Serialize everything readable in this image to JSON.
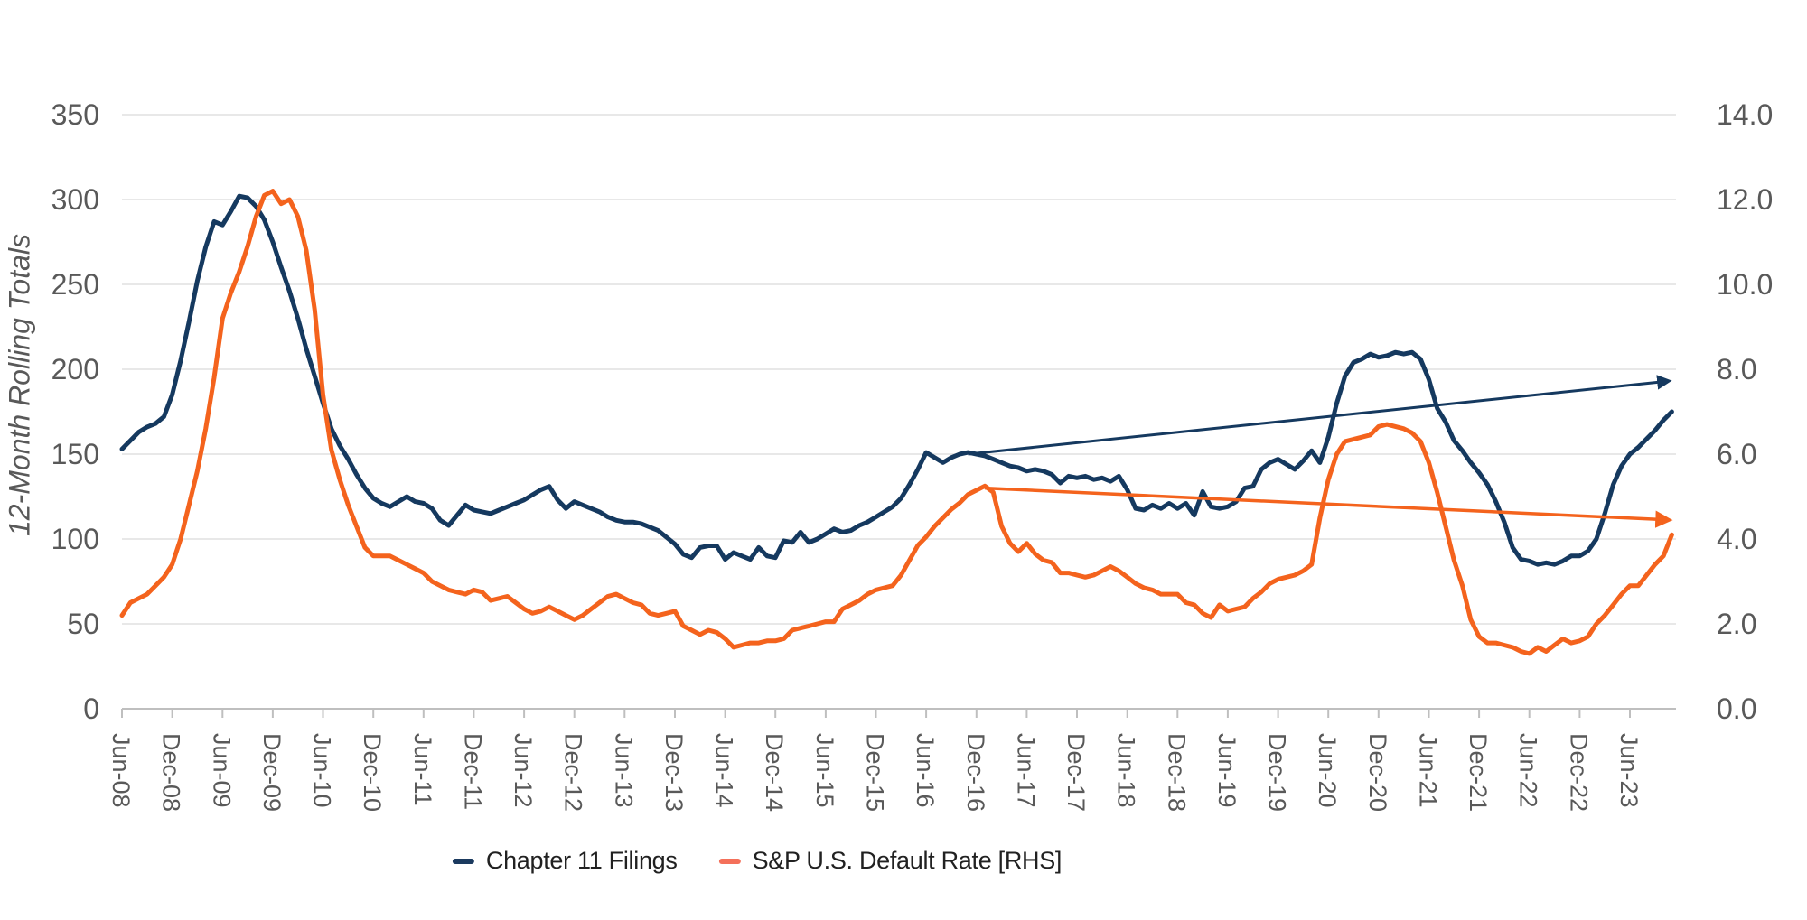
{
  "chart_data": {
    "type": "line",
    "title": "",
    "ylabel": "12-Month Rolling Totals",
    "frequency": "monthly",
    "x_range": "Jun-08 to Nov-23",
    "left_axis": {
      "min": 0,
      "max": 350,
      "step": 50,
      "ticks": [
        "0",
        "50",
        "100",
        "150",
        "200",
        "250",
        "300",
        "350"
      ]
    },
    "right_axis": {
      "min": 0,
      "max": 14,
      "step": 2,
      "ticks": [
        "0.0",
        "2.0",
        "4.0",
        "6.0",
        "8.0",
        "10.0",
        "12.0",
        "14.0"
      ]
    },
    "x_tick_labels": [
      "Jun-08",
      "Dec-08",
      "Jun-09",
      "Dec-09",
      "Jun-10",
      "Dec-10",
      "Jun-11",
      "Dec-11",
      "Jun-12",
      "Dec-12",
      "Jun-13",
      "Dec-13",
      "Jun-14",
      "Dec-14",
      "Jun-15",
      "Dec-15",
      "Jun-16",
      "Dec-16",
      "Jun-17",
      "Dec-17",
      "Jun-18",
      "Dec-18",
      "Jun-19",
      "Dec-19",
      "Jun-20",
      "Dec-20",
      "Jun-21",
      "Dec-21",
      "Jun-22",
      "Dec-22",
      "Jun-23"
    ],
    "grid": "horizontal",
    "legend_position": "bottom",
    "legend_colors": [
      "#1b3a5f",
      "#f4705a"
    ],
    "series": [
      {
        "name": "Chapter 11 Filings",
        "axis": "left",
        "color": "#15395f",
        "values": [
          153,
          158,
          163,
          166,
          168,
          172,
          185,
          205,
          228,
          252,
          272,
          287,
          285,
          293,
          302,
          301,
          296,
          288,
          275,
          260,
          246,
          230,
          212,
          196,
          180,
          165,
          155,
          147,
          138,
          130,
          124,
          121,
          119,
          122,
          125,
          122,
          121,
          118,
          111,
          108,
          114,
          120,
          117,
          116,
          115,
          117,
          119,
          121,
          123,
          126,
          129,
          131,
          123,
          118,
          122,
          120,
          118,
          116,
          113,
          111,
          110,
          110,
          109,
          107,
          105,
          101,
          97,
          91,
          89,
          95,
          96,
          96,
          88,
          92,
          90,
          88,
          95,
          90,
          89,
          99,
          98,
          104,
          98,
          100,
          103,
          106,
          104,
          105,
          108,
          110,
          113,
          116,
          119,
          124,
          132,
          141,
          151,
          148,
          145,
          148,
          150,
          151,
          150,
          149,
          147,
          145,
          143,
          142,
          140,
          141,
          140,
          138,
          133,
          137,
          136,
          137,
          135,
          136,
          134,
          137,
          129,
          118,
          117,
          120,
          118,
          121,
          118,
          121,
          114,
          128,
          119,
          118,
          119,
          122,
          130,
          131,
          141,
          145,
          147,
          144,
          141,
          146,
          152,
          145,
          160,
          180,
          196,
          204,
          206,
          209,
          207,
          208,
          210,
          209,
          210,
          206,
          194,
          177,
          169,
          158,
          152,
          145,
          139,
          132,
          122,
          110,
          95,
          88,
          87,
          85,
          86,
          85,
          87,
          90,
          90,
          93,
          100,
          115,
          132,
          143,
          150,
          154,
          159,
          164,
          170,
          175
        ]
      },
      {
        "name": "S&P U.S. Default Rate [RHS]",
        "axis": "right",
        "color": "#f4631d",
        "values": [
          2.2,
          2.5,
          2.6,
          2.7,
          2.9,
          3.1,
          3.4,
          4.0,
          4.8,
          5.6,
          6.6,
          7.8,
          9.2,
          9.8,
          10.3,
          10.9,
          11.6,
          12.1,
          12.2,
          11.9,
          12.0,
          11.6,
          10.8,
          9.4,
          7.4,
          6.1,
          5.4,
          4.8,
          4.3,
          3.8,
          3.6,
          3.6,
          3.6,
          3.5,
          3.4,
          3.3,
          3.2,
          3.0,
          2.9,
          2.8,
          2.75,
          2.7,
          2.8,
          2.75,
          2.55,
          2.6,
          2.65,
          2.5,
          2.35,
          2.25,
          2.3,
          2.4,
          2.3,
          2.2,
          2.1,
          2.2,
          2.35,
          2.5,
          2.65,
          2.7,
          2.6,
          2.5,
          2.45,
          2.25,
          2.2,
          2.25,
          2.3,
          1.95,
          1.85,
          1.75,
          1.85,
          1.8,
          1.65,
          1.45,
          1.5,
          1.55,
          1.55,
          1.6,
          1.6,
          1.65,
          1.85,
          1.9,
          1.95,
          2.0,
          2.05,
          2.05,
          2.35,
          2.45,
          2.55,
          2.7,
          2.8,
          2.85,
          2.9,
          3.15,
          3.5,
          3.85,
          4.05,
          4.3,
          4.5,
          4.7,
          4.85,
          5.05,
          5.15,
          5.25,
          5.1,
          4.3,
          3.9,
          3.7,
          3.9,
          3.65,
          3.5,
          3.45,
          3.2,
          3.2,
          3.15,
          3.1,
          3.15,
          3.25,
          3.35,
          3.25,
          3.1,
          2.95,
          2.85,
          2.8,
          2.7,
          2.7,
          2.7,
          2.5,
          2.45,
          2.25,
          2.15,
          2.45,
          2.3,
          2.35,
          2.4,
          2.6,
          2.75,
          2.95,
          3.05,
          3.1,
          3.15,
          3.25,
          3.4,
          4.5,
          5.4,
          6.0,
          6.3,
          6.35,
          6.4,
          6.45,
          6.65,
          6.7,
          6.65,
          6.6,
          6.5,
          6.3,
          5.8,
          5.1,
          4.3,
          3.5,
          2.9,
          2.1,
          1.7,
          1.55,
          1.55,
          1.5,
          1.45,
          1.35,
          1.3,
          1.45,
          1.35,
          1.5,
          1.65,
          1.55,
          1.6,
          1.7,
          2.0,
          2.2,
          2.45,
          2.7,
          2.9,
          2.9,
          3.15,
          3.4,
          3.6,
          4.1
        ]
      }
    ],
    "trend_arrows": [
      {
        "series": "Chapter 11 Filings",
        "axis": "left",
        "from_month_index": 101,
        "from_value": 150,
        "to_month_index": 184.5,
        "to_value": 193
      },
      {
        "series": "S&P U.S. Default Rate [RHS]",
        "axis": "right",
        "from_month_index": 103,
        "from_value": 5.2,
        "to_month_index": 184.5,
        "to_value": 4.45
      }
    ]
  }
}
